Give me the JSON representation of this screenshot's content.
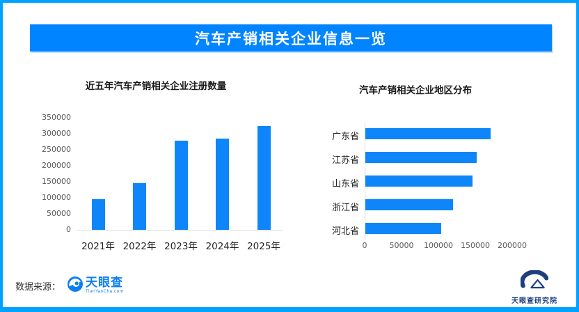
{
  "header": {
    "title": "汽车产销相关企业信息一览"
  },
  "footer": {
    "source_label": "数据来源：",
    "tianyancha_logo_text": "天眼查",
    "tianyancha_logo_sub": "TianYanCha.com",
    "institute_logo_text": "天眼查研究院"
  },
  "colors": {
    "frame_border": "#00a2ff",
    "banner_bg": "#0084ff",
    "banner_text": "#ffffff",
    "bar_blue": "#0e86f9",
    "axis_line": "#dcdcdc",
    "tick_text": "#595959",
    "category_text": "#262626",
    "title_text": "#1a1a1a",
    "tianyancha_blue": "#0c7ff2",
    "institute_navy": "#1e3f7f"
  },
  "chart_data": [
    {
      "type": "bar",
      "orientation": "vertical",
      "title": "近五年汽车产销相关企业注册数量",
      "categories": [
        "2021年",
        "2022年",
        "2023年",
        "2024年",
        "2025年"
      ],
      "values": [
        95000,
        145000,
        278000,
        284000,
        325000
      ],
      "xlabel": "",
      "ylabel": "",
      "ylim": [
        0,
        350000
      ],
      "yticks": [
        0,
        50000,
        100000,
        150000,
        200000,
        250000,
        300000,
        350000
      ],
      "grid": false,
      "legend": null
    },
    {
      "type": "bar",
      "orientation": "horizontal",
      "title": "汽车产销相关企业地区分布",
      "categories": [
        "广东省",
        "江苏省",
        "山东省",
        "浙江省",
        "河北省"
      ],
      "values": [
        170000,
        151000,
        145000,
        119000,
        103000
      ],
      "xlabel": "",
      "ylabel": "",
      "xlim": [
        0,
        200000
      ],
      "xticks": [
        0,
        50000,
        100000,
        150000,
        200000
      ],
      "grid": false,
      "legend": null
    }
  ]
}
